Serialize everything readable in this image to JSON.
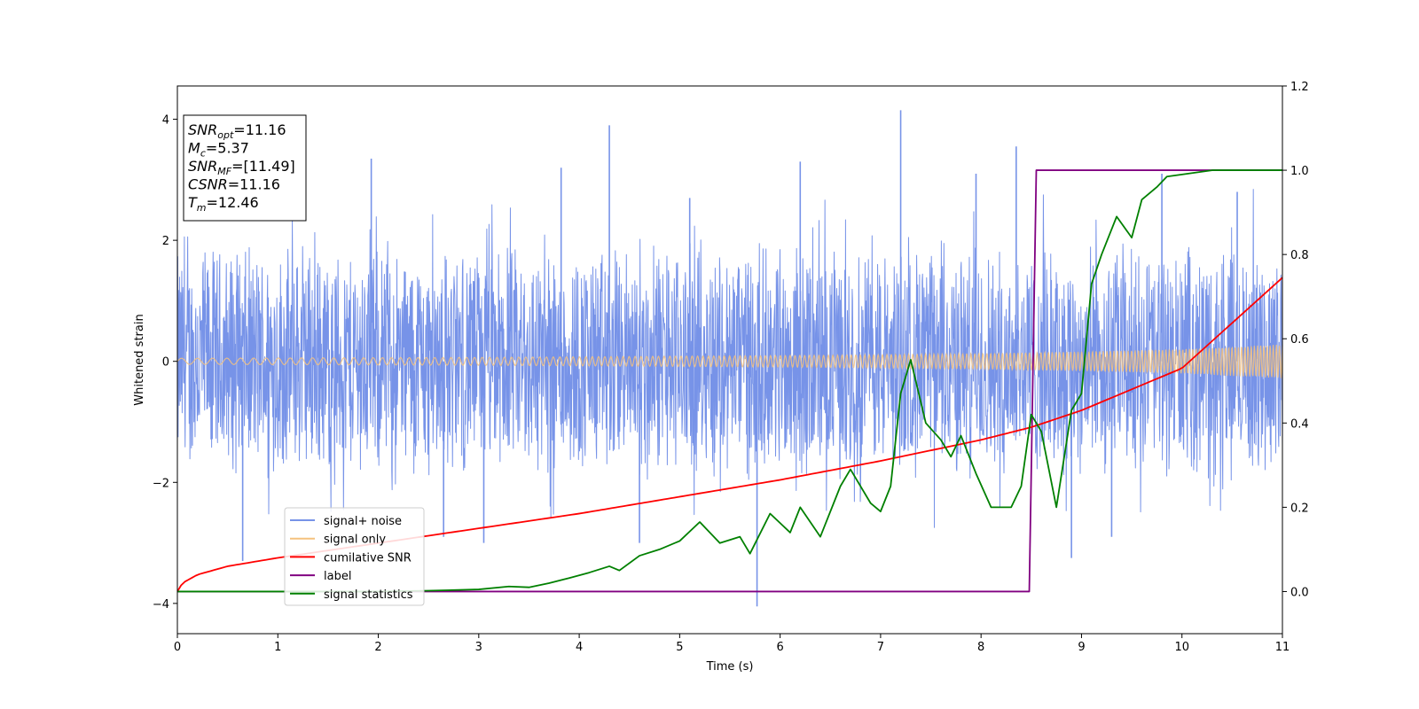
{
  "chart_data": {
    "type": "line",
    "xlabel": "Time (s)",
    "ylabel": "Whitened strain",
    "xlim": [
      0,
      11
    ],
    "ylim": [
      -4.5,
      4.55
    ],
    "y2lim": [
      -0.1,
      1.2
    ],
    "xticks": [
      0,
      1,
      2,
      3,
      4,
      5,
      6,
      7,
      8,
      9,
      10,
      11
    ],
    "yticks": [
      -4,
      -2,
      0,
      2,
      4
    ],
    "y2ticks": [
      0.0,
      0.2,
      0.4,
      0.6,
      0.8,
      1.0,
      1.2
    ],
    "grid": false,
    "legend_position": "lower-left",
    "legend": [
      {
        "label": "signal+ noise",
        "color": "#7793e8"
      },
      {
        "label": "signal only",
        "color": "#f5c27e"
      },
      {
        "label": "cumilative SNR",
        "color": "#ff0000"
      },
      {
        "label": "label",
        "color": "#800080"
      },
      {
        "label": "signal statistics",
        "color": "#008000"
      }
    ],
    "annotation": [
      {
        "base": "SNR",
        "sub": "opt",
        "value": "=11.16"
      },
      {
        "base": "M",
        "sub": "c",
        "value": "=5.37"
      },
      {
        "base": "SNR",
        "sub": "MF",
        "value": "=[11.49]"
      },
      {
        "base": "CSNR",
        "sub": "",
        "value": "=11.16"
      },
      {
        "base": "T",
        "sub": "m",
        "value": "=12.46"
      }
    ],
    "series": [
      {
        "name": "signal+ noise",
        "axis": "left",
        "description": "dense noise band approximately between -2 and 2 with spikes",
        "spikes_x": [
          0.65,
          1.93,
          2.65,
          3.05,
          3.82,
          4.3,
          4.6,
          5.1,
          5.77,
          6.2,
          7.2,
          7.95,
          8.35,
          8.9,
          9.3,
          9.8,
          10.55
        ],
        "spikes_y": [
          -3.3,
          3.35,
          -2.9,
          -3.0,
          3.2,
          3.9,
          -3.0,
          2.7,
          -4.05,
          3.3,
          4.15,
          3.1,
          3.55,
          -3.25,
          -2.9,
          3.1,
          2.8
        ]
      },
      {
        "name": "signal only",
        "axis": "left",
        "x": [
          0,
          1,
          2,
          3,
          4,
          5,
          6,
          7,
          8,
          9,
          10,
          11
        ],
        "amplitude": [
          0.05,
          0.055,
          0.06,
          0.065,
          0.075,
          0.085,
          0.095,
          0.11,
          0.13,
          0.16,
          0.2,
          0.28
        ]
      },
      {
        "name": "cumilative SNR",
        "axis": "right",
        "x": [
          0,
          0.05,
          0.2,
          0.5,
          1,
          2,
          3,
          4,
          5,
          6,
          7,
          8,
          8.5,
          9,
          10,
          11
        ],
        "values": [
          0.0,
          0.02,
          0.04,
          0.06,
          0.08,
          0.115,
          0.15,
          0.185,
          0.225,
          0.265,
          0.31,
          0.36,
          0.39,
          0.43,
          0.53,
          0.745
        ]
      },
      {
        "name": "label",
        "axis": "right",
        "x": [
          0,
          8.48,
          8.55,
          11
        ],
        "values": [
          0.0,
          0.0,
          1.0,
          1.0
        ]
      },
      {
        "name": "signal statistics",
        "axis": "right",
        "x": [
          0,
          1,
          2,
          2.5,
          3,
          3.3,
          3.5,
          3.7,
          3.9,
          4.1,
          4.3,
          4.4,
          4.6,
          4.8,
          5.0,
          5.2,
          5.3,
          5.4,
          5.6,
          5.7,
          5.9,
          6.1,
          6.2,
          6.4,
          6.6,
          6.7,
          6.9,
          7.0,
          7.1,
          7.2,
          7.3,
          7.45,
          7.6,
          7.7,
          7.8,
          7.95,
          8.1,
          8.3,
          8.4,
          8.5,
          8.6,
          8.75,
          8.9,
          9.0,
          9.1,
          9.2,
          9.35,
          9.5,
          9.6,
          9.75,
          9.85,
          10.0,
          10.3,
          11
        ],
        "values": [
          0.0,
          0.0,
          0.0,
          0.002,
          0.005,
          0.012,
          0.01,
          0.02,
          0.032,
          0.045,
          0.06,
          0.05,
          0.085,
          0.1,
          0.12,
          0.165,
          0.14,
          0.115,
          0.13,
          0.09,
          0.185,
          0.14,
          0.2,
          0.13,
          0.25,
          0.29,
          0.21,
          0.19,
          0.25,
          0.47,
          0.55,
          0.4,
          0.36,
          0.32,
          0.37,
          0.28,
          0.2,
          0.2,
          0.25,
          0.42,
          0.38,
          0.2,
          0.43,
          0.47,
          0.73,
          0.8,
          0.89,
          0.84,
          0.93,
          0.96,
          0.985,
          0.99,
          1.0,
          1.0
        ]
      }
    ]
  }
}
